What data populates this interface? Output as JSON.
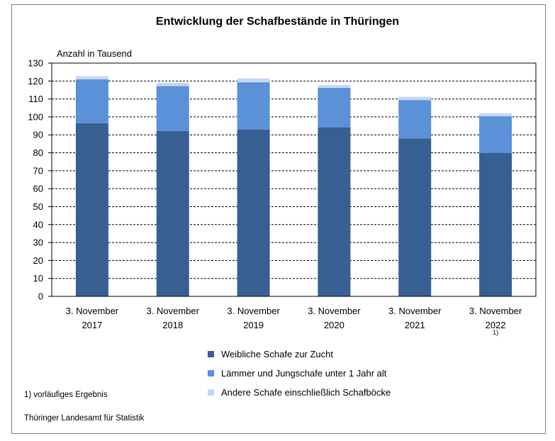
{
  "chart_data": {
    "type": "bar",
    "stacked": true,
    "title": "Entwicklung der Schafbestände in Thüringen",
    "ylabel": "Anzahl in Tausend",
    "xlabel": "",
    "ylim": [
      0,
      130
    ],
    "yticks": [
      0,
      10,
      20,
      30,
      40,
      50,
      60,
      70,
      80,
      90,
      100,
      110,
      120,
      130
    ],
    "grid": true,
    "legend_position": "bottom",
    "categories": [
      {
        "line1": "3. November",
        "line2": "2017",
        "note": ""
      },
      {
        "line1": "3. November",
        "line2": "2018",
        "note": ""
      },
      {
        "line1": "3. November",
        "line2": "2019",
        "note": ""
      },
      {
        "line1": "3. November",
        "line2": "2020",
        "note": ""
      },
      {
        "line1": "3. November",
        "line2": "2021",
        "note": ""
      },
      {
        "line1": "3. November",
        "line2": "2022",
        "note": "1)"
      }
    ],
    "series": [
      {
        "name": "Weibliche Schafe zur Zucht",
        "color": "#375f92",
        "values": [
          96.5,
          92.2,
          93.0,
          94.2,
          87.9,
          79.9
        ]
      },
      {
        "name": "Lämmer und Jungschafe unter 1 Jahr alt",
        "color": "#5b91d6",
        "values": [
          24.5,
          25.0,
          26.3,
          22.0,
          21.5,
          20.5
        ]
      },
      {
        "name": "Andere Schafe einschließlich Schafböcke",
        "color": "#c6d8f0",
        "values": [
          1.7,
          1.8,
          2.2,
          1.5,
          1.8,
          1.6
        ]
      }
    ]
  },
  "footnote": "1) vorläufiges Ergebnis",
  "source": "Thüringer Landesamt für Statistik"
}
